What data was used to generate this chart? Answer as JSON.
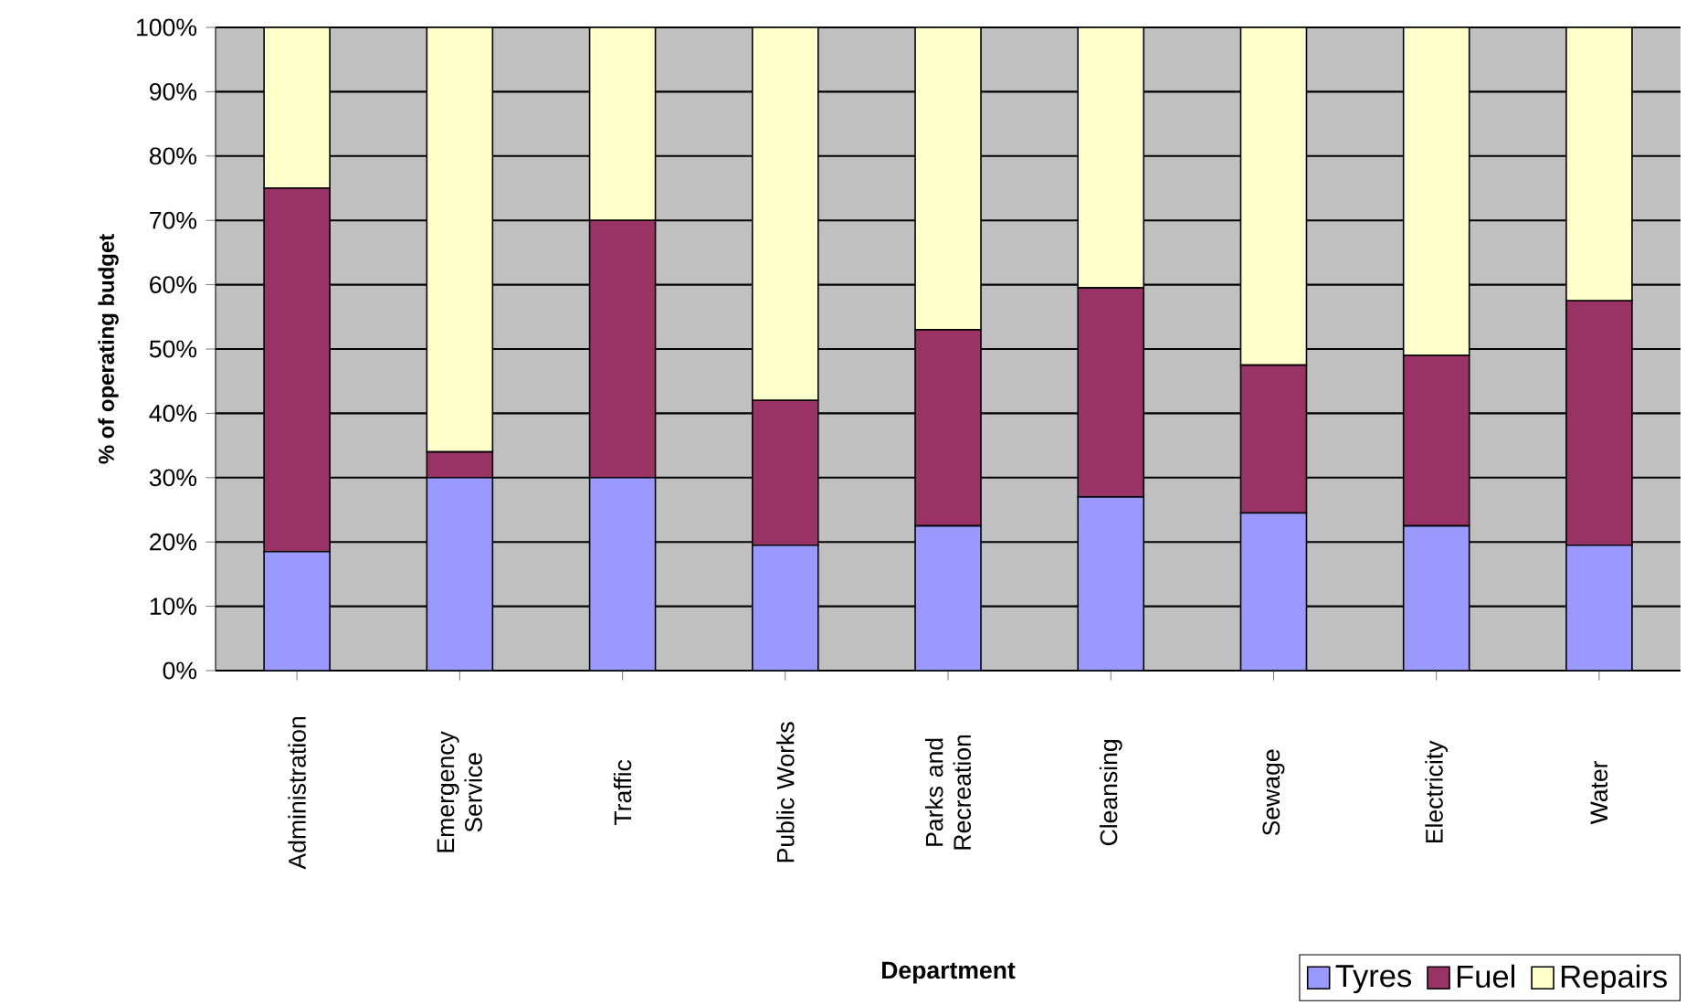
{
  "chart_data": {
    "type": "bar",
    "stacked": true,
    "xlabel": "Department",
    "ylabel": "% of operating budget",
    "categories": [
      "Administration",
      "Emergency Service",
      "Traffic",
      "Public Works",
      "Parks and Recreation",
      "Cleansing",
      "Sewage",
      "Electricity",
      "Water"
    ],
    "series": [
      {
        "name": "Tyres",
        "color": "#9999ff",
        "values": [
          18.5,
          30,
          30,
          19.5,
          22.5,
          27,
          24.5,
          22.5,
          19.5
        ]
      },
      {
        "name": "Fuel",
        "color": "#993366",
        "values": [
          56.5,
          4,
          40,
          22.5,
          30.5,
          32.5,
          23,
          26.5,
          38
        ]
      },
      {
        "name": "Repairs",
        "color": "#ffffcc",
        "values": [
          25,
          66,
          30,
          58,
          47,
          40.5,
          52.5,
          51,
          42.5
        ]
      }
    ],
    "ylim": [
      0,
      100
    ],
    "yticks": [
      {
        "value": 0,
        "label": "0%"
      },
      {
        "value": 10,
        "label": "10%"
      },
      {
        "value": 20,
        "label": "20%"
      },
      {
        "value": 30,
        "label": "30%"
      },
      {
        "value": 40,
        "label": "40%"
      },
      {
        "value": 50,
        "label": "50%"
      },
      {
        "value": 60,
        "label": "60%"
      },
      {
        "value": 70,
        "label": "70%"
      },
      {
        "value": 80,
        "label": "80%"
      },
      {
        "value": 90,
        "label": "90%"
      },
      {
        "value": 100,
        "label": "100%"
      }
    ],
    "grid": "y",
    "legend": "bottom right"
  }
}
